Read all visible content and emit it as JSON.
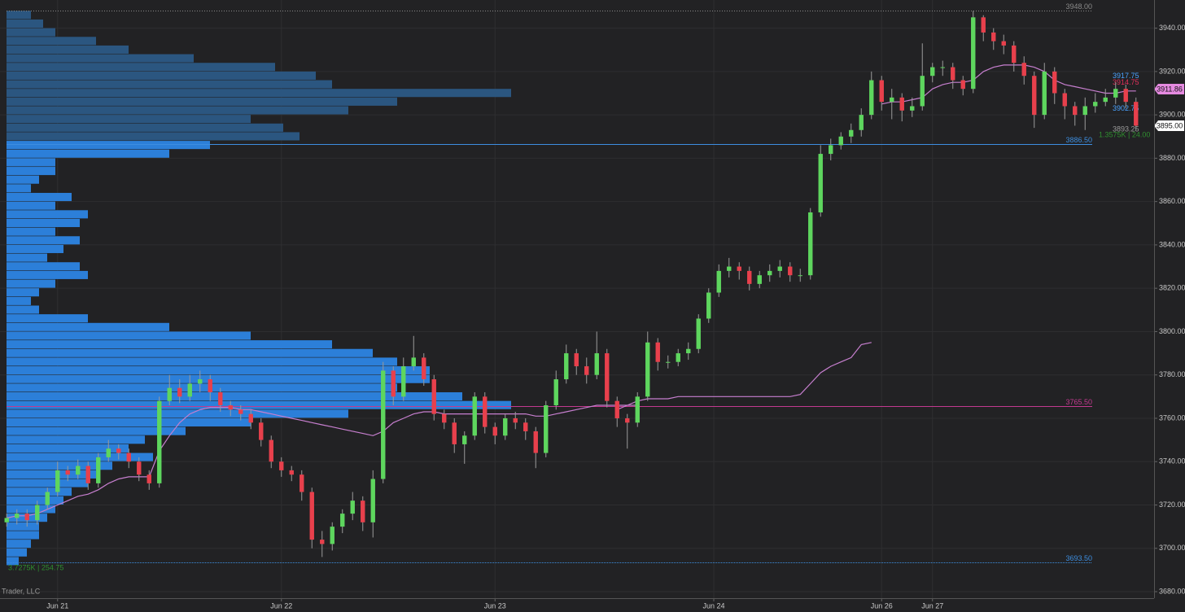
{
  "chart_data": {
    "type": "candlestick",
    "ylim": [
      3677,
      3953
    ],
    "yticks": [
      {
        "value": 3680,
        "label": "3680.00"
      },
      {
        "value": 3700,
        "label": "3700.00"
      },
      {
        "value": 3720,
        "label": "3720.00"
      },
      {
        "value": 3740,
        "label": "3740.00"
      },
      {
        "value": 3760,
        "label": "3760.00"
      },
      {
        "value": 3780,
        "label": "3780.00"
      },
      {
        "value": 3800,
        "label": "3800.00"
      },
      {
        "value": 3820,
        "label": "3820.00"
      },
      {
        "value": 3840,
        "label": "3840.00"
      },
      {
        "value": 3860,
        "label": "3860.00"
      },
      {
        "value": 3880,
        "label": "3880.00"
      },
      {
        "value": 3900,
        "label": "3900.00"
      },
      {
        "value": 3920,
        "label": "3920.00"
      },
      {
        "value": 3940,
        "label": "3940.00"
      }
    ],
    "xticks": [
      {
        "value": 5,
        "label": "Jun 21"
      },
      {
        "value": 27,
        "label": "Jun 22"
      },
      {
        "value": 48,
        "label": "Jun 23"
      },
      {
        "value": 69.5,
        "label": "Jun 24"
      },
      {
        "value": 86,
        "label": "Jun 26"
      },
      {
        "value": 91,
        "label": "Jun 27"
      }
    ],
    "grid": true,
    "up_color": "#5ed65e",
    "down_color": "#e8404c",
    "open": [
      3712,
      3714,
      3716,
      3713,
      3720,
      3726,
      3736,
      3734,
      3738,
      3730,
      3742,
      3746,
      3744,
      3740,
      3734,
      3730,
      3768,
      3774,
      3770,
      3776,
      3778,
      3772,
      3766,
      3764,
      3762,
      3758,
      3750,
      3740,
      3736,
      3734,
      3726,
      3704,
      3702,
      3710,
      3716,
      3722,
      3712,
      3732,
      3782,
      3770,
      3784,
      3788,
      3778,
      3762,
      3758,
      3748,
      3752,
      3770,
      3756,
      3752,
      3760,
      3758,
      3754,
      3744,
      3766,
      3778,
      3790,
      3784,
      3780,
      3790,
      3768,
      3760,
      3758,
      3770,
      3795,
      3786,
      3786,
      3790,
      3792,
      3806,
      3818,
      3828,
      3830,
      3828,
      3822,
      3826,
      3828,
      3830,
      3826,
      3826,
      3855,
      3882,
      3886,
      3890,
      3893,
      3900,
      3916,
      3906,
      3908,
      3902,
      3904,
      3918,
      3922,
      3922,
      3916,
      3912,
      3945,
      3938,
      3934,
      3932,
      3924,
      3918,
      3900,
      3920,
      3910,
      3904,
      3900,
      3904,
      3906,
      3908,
      3912,
      3906
    ],
    "high": [
      3716,
      3718,
      3718,
      3722,
      3728,
      3740,
      3738,
      3741,
      3740,
      3744,
      3750,
      3748,
      3746,
      3742,
      3736,
      3770,
      3780,
      3778,
      3780,
      3782,
      3780,
      3774,
      3768,
      3766,
      3764,
      3760,
      3752,
      3742,
      3738,
      3736,
      3728,
      3708,
      3712,
      3718,
      3726,
      3724,
      3736,
      3786,
      3784,
      3788,
      3798,
      3790,
      3780,
      3764,
      3760,
      3754,
      3772,
      3772,
      3758,
      3762,
      3763,
      3760,
      3756,
      3768,
      3782,
      3794,
      3792,
      3788,
      3800,
      3792,
      3770,
      3762,
      3772,
      3800,
      3797,
      3789,
      3792,
      3795,
      3808,
      3820,
      3831,
      3834,
      3832,
      3830,
      3828,
      3831,
      3833,
      3832,
      3829,
      3857,
      3886,
      3889,
      3892,
      3896,
      3903,
      3920,
      3918,
      3912,
      3910,
      3908,
      3933,
      3924,
      3925,
      3924,
      3918,
      3948,
      3946,
      3940,
      3937,
      3934,
      3927,
      3920,
      3924,
      3922,
      3912,
      3906,
      3908,
      3910,
      3912,
      3915,
      3914,
      3908
    ],
    "low": [
      3710,
      3711,
      3710,
      3711,
      3718,
      3724,
      3731,
      3732,
      3727,
      3728,
      3740,
      3741,
      3737,
      3731,
      3727,
      3728,
      3766,
      3767,
      3768,
      3772,
      3768,
      3763,
      3761,
      3759,
      3755,
      3747,
      3737,
      3733,
      3731,
      3722,
      3700,
      3696,
      3699,
      3707,
      3713,
      3708,
      3705,
      3730,
      3766,
      3768,
      3782,
      3775,
      3759,
      3755,
      3744,
      3739,
      3750,
      3753,
      3748,
      3750,
      3755,
      3750,
      3737,
      3742,
      3764,
      3776,
      3780,
      3776,
      3778,
      3765,
      3756,
      3746,
      3756,
      3768,
      3782,
      3783,
      3784,
      3787,
      3790,
      3804,
      3816,
      3825,
      3824,
      3819,
      3820,
      3823,
      3825,
      3823,
      3823,
      3824,
      3853,
      3879,
      3884,
      3887,
      3890,
      3898,
      3902,
      3898,
      3897,
      3899,
      3902,
      3915,
      3918,
      3912,
      3909,
      3910,
      3934,
      3930,
      3928,
      3920,
      3914,
      3894,
      3898,
      3905,
      3898,
      3895,
      3893,
      3901,
      3904,
      3905,
      3903,
      3893
    ],
    "close": [
      3714,
      3716,
      3713,
      3720,
      3726,
      3736,
      3734,
      3738,
      3730,
      3742,
      3746,
      3744,
      3740,
      3734,
      3730,
      3768,
      3774,
      3770,
      3776,
      3778,
      3772,
      3766,
      3764,
      3762,
      3758,
      3750,
      3740,
      3736,
      3734,
      3726,
      3704,
      3702,
      3710,
      3716,
      3722,
      3712,
      3732,
      3782,
      3770,
      3784,
      3788,
      3778,
      3762,
      3758,
      3748,
      3752,
      3770,
      3756,
      3752,
      3760,
      3758,
      3754,
      3744,
      3766,
      3778,
      3790,
      3784,
      3780,
      3790,
      3768,
      3760,
      3758,
      3770,
      3795,
      3786,
      3786,
      3790,
      3792,
      3806,
      3818,
      3828,
      3830,
      3828,
      3822,
      3826,
      3828,
      3830,
      3826,
      3826,
      3855,
      3882,
      3886,
      3890,
      3893,
      3900,
      3916,
      3906,
      3908,
      3902,
      3904,
      3918,
      3922,
      3922,
      3916,
      3912,
      3945,
      3938,
      3934,
      3932,
      3924,
      3918,
      3900,
      3920,
      3910,
      3904,
      3900,
      3904,
      3906,
      3908,
      3912,
      3906,
      3895
    ],
    "lines": [
      {
        "color": "#c77fcf",
        "values": [
          3714,
          3715,
          3715,
          3716,
          3718,
          3720,
          3722,
          3724,
          3725,
          3727,
          3730,
          3732,
          3733,
          3733,
          3733,
          3745,
          3752,
          3758,
          3762,
          3764,
          3765,
          3765,
          3765,
          3764,
          3764,
          3763,
          3762,
          3761,
          3760,
          3759,
          3758,
          3757,
          3756,
          3755,
          3754,
          3753,
          3752,
          3754,
          3758,
          3760,
          3762,
          3763,
          3763,
          3762,
          3762,
          3762,
          3762,
          3762,
          3762,
          3762,
          3762,
          3762,
          3761,
          3761,
          3762,
          3763,
          3764,
          3765,
          3766,
          3766,
          3766,
          3766,
          3766,
          null,
          null,
          null,
          null,
          null,
          null,
          null,
          null,
          null,
          null,
          null,
          null,
          null,
          null,
          null,
          null,
          null,
          null,
          null,
          null,
          null,
          null,
          null,
          3905,
          3906,
          3906,
          3907,
          3908,
          3912,
          3914,
          3915,
          3915,
          3916,
          3920,
          3922,
          3923,
          3923,
          3923,
          3922,
          3920,
          3916,
          3914,
          3913,
          3912,
          3911,
          3910,
          3910,
          3911,
          3911
        ]
      },
      {
        "color": "#c77fcf",
        "values": [
          null,
          null,
          null,
          null,
          null,
          null,
          null,
          null,
          null,
          null,
          null,
          null,
          null,
          null,
          null,
          null,
          null,
          null,
          null,
          null,
          null,
          null,
          null,
          null,
          null,
          null,
          null,
          null,
          null,
          null,
          null,
          null,
          null,
          null,
          null,
          null,
          null,
          null,
          null,
          null,
          null,
          null,
          null,
          null,
          null,
          null,
          null,
          null,
          null,
          null,
          null,
          null,
          null,
          null,
          null,
          null,
          null,
          null,
          null,
          null,
          3764,
          3766,
          3768,
          3769,
          3769,
          3769,
          3770,
          3770,
          3770,
          3770,
          3770,
          3770,
          3770,
          3770,
          3770,
          3770,
          3770,
          3770,
          3771,
          3776,
          3781,
          3784,
          3786,
          3788,
          3794,
          3795,
          null,
          null,
          null,
          null,
          null,
          null,
          null,
          null,
          null,
          null,
          null,
          null,
          null,
          null,
          null,
          null,
          null,
          null,
          null,
          null,
          null,
          null,
          null,
          null,
          null,
          null
        ]
      }
    ],
    "profile": {
      "color": "#2c7fd9",
      "color_outside": "#2b5680",
      "levels": [
        3694,
        3698,
        3702,
        3706,
        3710,
        3714,
        3718,
        3722,
        3726,
        3730,
        3734,
        3738,
        3742,
        3746,
        3750,
        3754,
        3758,
        3762,
        3766,
        3770,
        3774,
        3778,
        3782,
        3786,
        3790,
        3794,
        3798,
        3802,
        3806,
        3810,
        3814,
        3818,
        3822,
        3826,
        3830,
        3834,
        3838,
        3842,
        3846,
        3850,
        3854,
        3858,
        3862,
        3866,
        3870,
        3874,
        3878,
        3882,
        3886,
        3890,
        3894,
        3898,
        3902,
        3906,
        3910,
        3914,
        3918,
        3922,
        3926,
        3930,
        3934,
        3938,
        3942,
        3946
      ],
      "volumes": [
        15,
        25,
        30,
        40,
        40,
        50,
        60,
        70,
        80,
        100,
        110,
        130,
        180,
        150,
        170,
        220,
        300,
        420,
        620,
        560,
        480,
        520,
        520,
        480,
        450,
        400,
        300,
        200,
        100,
        40,
        30,
        40,
        60,
        100,
        90,
        50,
        70,
        90,
        60,
        90,
        100,
        60,
        80,
        30,
        40,
        60,
        60,
        200,
        250,
        360,
        340,
        300,
        420,
        480,
        620,
        400,
        380,
        330,
        230,
        150,
        110,
        60,
        45,
        30
      ]
    },
    "levels": [
      {
        "value": 3948,
        "label": "3948.00",
        "color": "#8a8a8a",
        "dash": "1 2"
      },
      {
        "value": 3886.5,
        "label": "3886.50",
        "color": "#3d8ee0",
        "dash": "none",
        "va": true
      },
      {
        "value": 3765.5,
        "label": "3765.50",
        "color": "#c2398f",
        "dash": "none"
      },
      {
        "value": 3693.5,
        "label": "3693.50",
        "color": "#3d8ee0",
        "dash": "1 1",
        "va": true
      }
    ],
    "minor_levels": [
      {
        "value": 3917.75,
        "color": "#4aa3ff"
      },
      {
        "value": 3914.75,
        "color": "#e0305a"
      },
      {
        "value": 3902.75,
        "color": "#4aa3ff"
      },
      {
        "value": 3893.25,
        "color": "#9a9a9a"
      }
    ],
    "price_markers": [
      {
        "value": 3911.86,
        "bg": "#e58ae0"
      },
      {
        "value": 3895,
        "label": "3895.00",
        "bg": "#ffffff"
      }
    ],
    "annotations": [
      {
        "text": "3.7275K | 254.75",
        "color": "#2f8f2f"
      },
      {
        "text": "1.3575K | 24.00",
        "color": "#2f8f2f"
      }
    ]
  },
  "footer": "Trader, LLC"
}
